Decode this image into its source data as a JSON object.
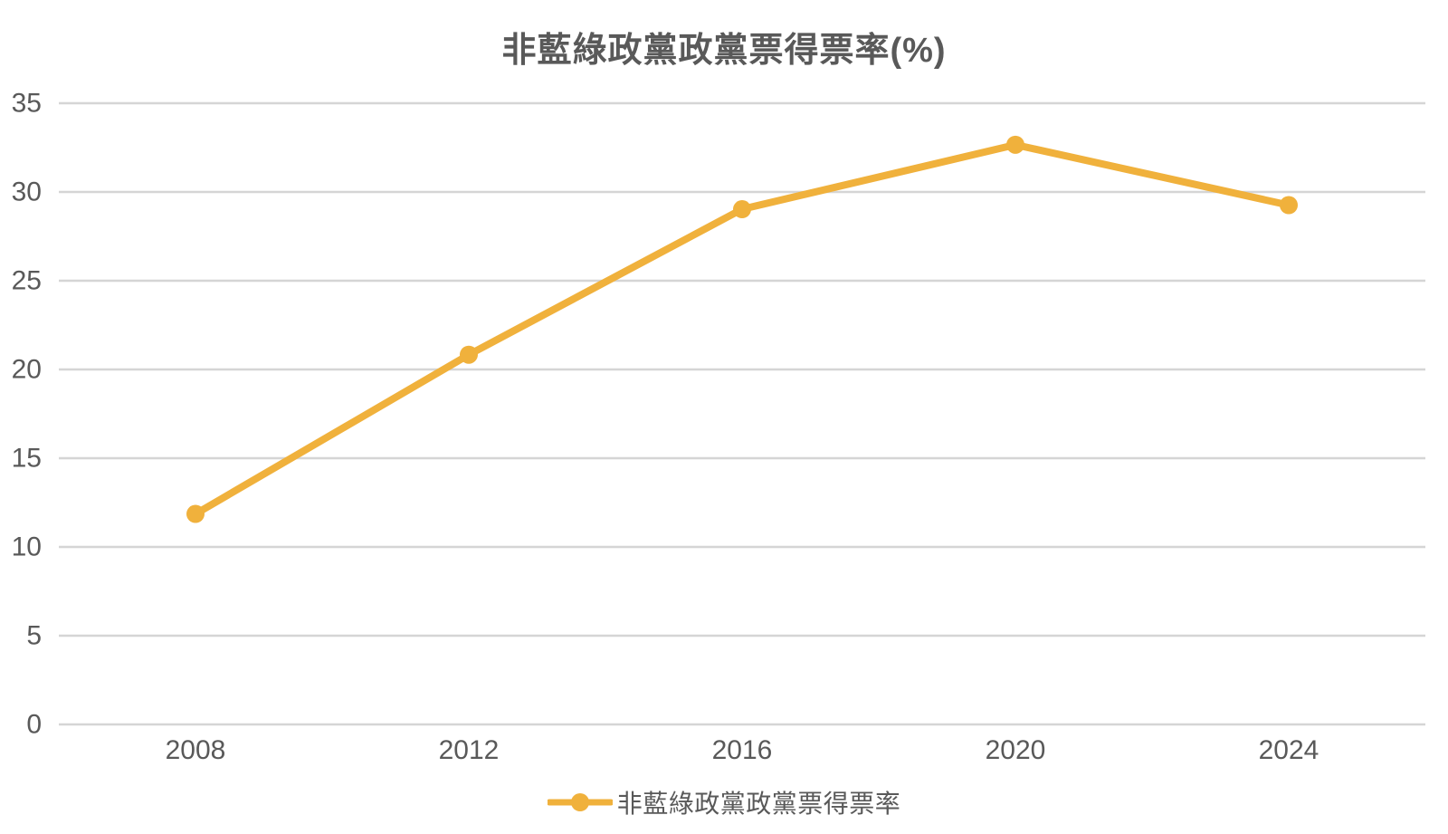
{
  "chart_data": {
    "type": "line",
    "title": "非藍綠政黨政黨票得票率(%)",
    "categories": [
      "2008",
      "2012",
      "2016",
      "2020",
      "2024"
    ],
    "series": [
      {
        "name": "非藍綠政黨政黨票得票率",
        "values": [
          11.86,
          20.83,
          29.03,
          32.66,
          29.26
        ],
        "color": "#F0B13C",
        "marker": "circle"
      }
    ],
    "xlabel": "",
    "ylabel": "",
    "ylim": [
      0,
      35
    ],
    "yticks": [
      0,
      5,
      10,
      15,
      20,
      25,
      30,
      35
    ],
    "grid": true,
    "legend_position": "bottom",
    "colors": {
      "line": "#F0B13C",
      "text": "#595959",
      "gridline": "#D5D5D5",
      "background": "#FFFFFF"
    }
  }
}
